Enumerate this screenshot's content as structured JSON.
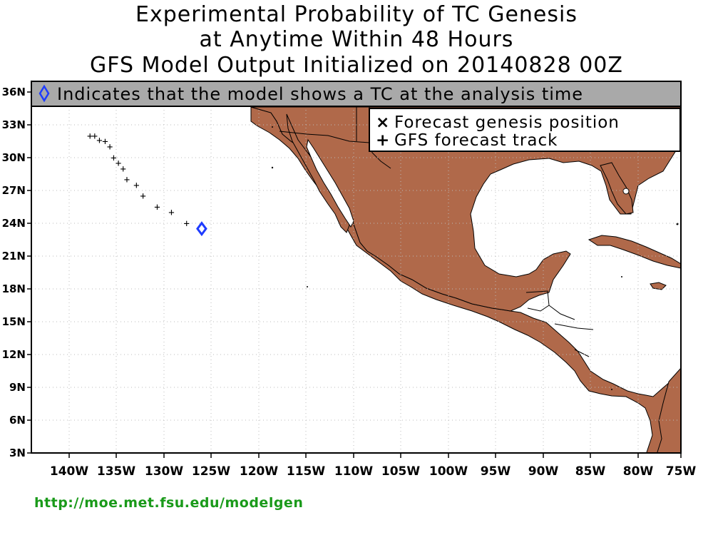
{
  "titles": {
    "line1": "Experimental Probability of TC Genesis",
    "line2": "at Anytime Within 48 Hours",
    "line3": "GFS Model Output Initialized on 20140828 00Z"
  },
  "banner": {
    "text": "Indicates that the model shows a TC at the analysis time",
    "symbol": "diamond-icon"
  },
  "legend": {
    "genesis_label": "Forecast genesis position",
    "genesis_symbol": "×",
    "track_label": "GFS forecast track",
    "track_symbol": "+"
  },
  "axes": {
    "lon_labels": [
      "140W",
      "135W",
      "130W",
      "125W",
      "120W",
      "115W",
      "110W",
      "105W",
      "100W",
      "95W",
      "90W",
      "85W",
      "80W",
      "75W"
    ],
    "lat_labels": [
      "3N",
      "6N",
      "9N",
      "12N",
      "15N",
      "18N",
      "21N",
      "24N",
      "27N",
      "30N",
      "33N",
      "36N"
    ]
  },
  "colors": {
    "land": "#b0694a",
    "ocean": "#ffffff",
    "banner_bg": "#a9a9a9",
    "diamond": "#1f3cff",
    "footer_text": "#1a9a1a"
  },
  "map_data": {
    "lon_range": [
      -143.5,
      -75
    ],
    "lat_range": [
      3,
      37.5
    ],
    "tc_at_analysis": {
      "lon": -126,
      "lat": 23.5
    },
    "forecast_track": [
      {
        "lon": -137.8,
        "lat": 32.0
      },
      {
        "lon": -137.3,
        "lat": 32.0
      },
      {
        "lon": -136.8,
        "lat": 31.6
      },
      {
        "lon": -136.2,
        "lat": 31.5
      },
      {
        "lon": -135.7,
        "lat": 31.0
      },
      {
        "lon": -135.3,
        "lat": 30.0
      },
      {
        "lon": -134.8,
        "lat": 29.5
      },
      {
        "lon": -134.3,
        "lat": 29.0
      },
      {
        "lon": -133.9,
        "lat": 28.0
      },
      {
        "lon": -132.9,
        "lat": 27.5
      },
      {
        "lon": -132.2,
        "lat": 26.5
      },
      {
        "lon": -130.7,
        "lat": 25.5
      },
      {
        "lon": -129.2,
        "lat": 25.0
      },
      {
        "lon": -127.6,
        "lat": 24.0
      }
    ]
  },
  "footer": {
    "url_text": "http://moe.met.fsu.edu/modelgen"
  }
}
